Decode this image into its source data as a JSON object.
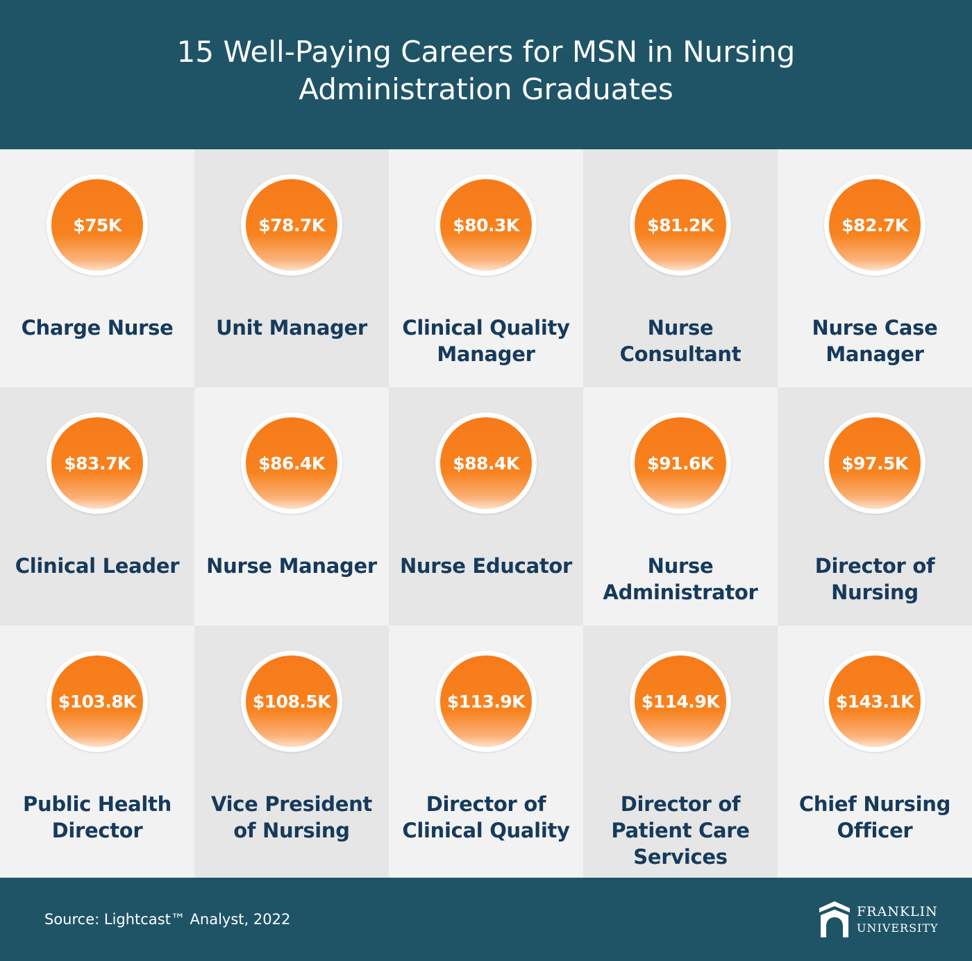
{
  "header": {
    "title": "15 Well-Paying Careers for MSN in Nursing Administration Graduates"
  },
  "careers": [
    {
      "salary": "$75K",
      "title": "Charge Nurse"
    },
    {
      "salary": "$78.7K",
      "title": "Unit Manager"
    },
    {
      "salary": "$80.3K",
      "title": "Clinical Quality Manager"
    },
    {
      "salary": "$81.2K",
      "title": "Nurse Consultant"
    },
    {
      "salary": "$82.7K",
      "title": "Nurse Case Manager"
    },
    {
      "salary": "$83.7K",
      "title": "Clinical Leader"
    },
    {
      "salary": "$86.4K",
      "title": "Nurse Manager"
    },
    {
      "salary": "$88.4K",
      "title": "Nurse Educator"
    },
    {
      "salary": "$91.6K",
      "title": "Nurse Administrator"
    },
    {
      "salary": "$97.5K",
      "title": "Director of Nursing"
    },
    {
      "salary": "$103.8K",
      "title": "Public Health Director"
    },
    {
      "salary": "$108.5K",
      "title": "Vice President of Nursing"
    },
    {
      "salary": "$113.9K",
      "title": "Director of Clinical Quality"
    },
    {
      "salary": "$114.9K",
      "title": "Director of Patient Care Services"
    },
    {
      "salary": "$143.1K",
      "title": "Chief Nursing Officer"
    }
  ],
  "footer": {
    "source": "Source: Lightcast™ Analyst, 2022",
    "logo_line1": "FRANKLIN",
    "logo_line2": "UNIVERSITY"
  },
  "colors": {
    "header_bg": "#1f5467",
    "accent_orange": "#f77a1a",
    "job_text": "#163a5c",
    "cell_light": "#f2f2f2",
    "cell_dark": "#e6e6e6"
  }
}
